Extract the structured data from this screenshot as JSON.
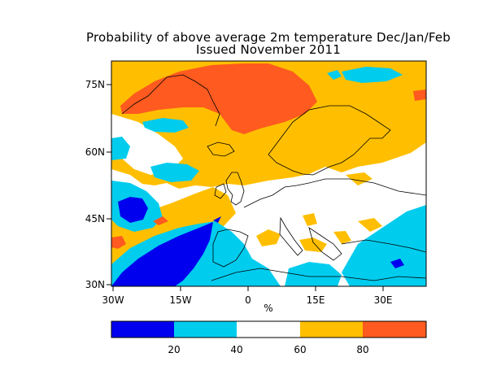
{
  "title": {
    "line1": "Probability of above average 2m temperature Dec/Jan/Feb",
    "line2": "Issued November 2011"
  },
  "axes": {
    "y_ticks": [
      "75N",
      "60N",
      "45N",
      "30N"
    ],
    "x_ticks": [
      "30W",
      "15W",
      "0",
      "15E",
      "30E"
    ],
    "x_unit": "%"
  },
  "colorbar": {
    "ticks": [
      "20",
      "40",
      "60",
      "80"
    ],
    "bins": [
      {
        "range": "0-20",
        "color": "#0000ee"
      },
      {
        "range": "20-40",
        "color": "#00ccee"
      },
      {
        "range": "40-60",
        "color": "#ffffff"
      },
      {
        "range": "60-80",
        "color": "#ffbf00"
      },
      {
        "range": "80-100",
        "color": "#ff5a1f"
      }
    ]
  },
  "colors": {
    "below_strong": "#0000ee",
    "below": "#00ccee",
    "neutral": "#ffffff",
    "above": "#ffbf00",
    "above_strong": "#ff5a1f"
  }
}
